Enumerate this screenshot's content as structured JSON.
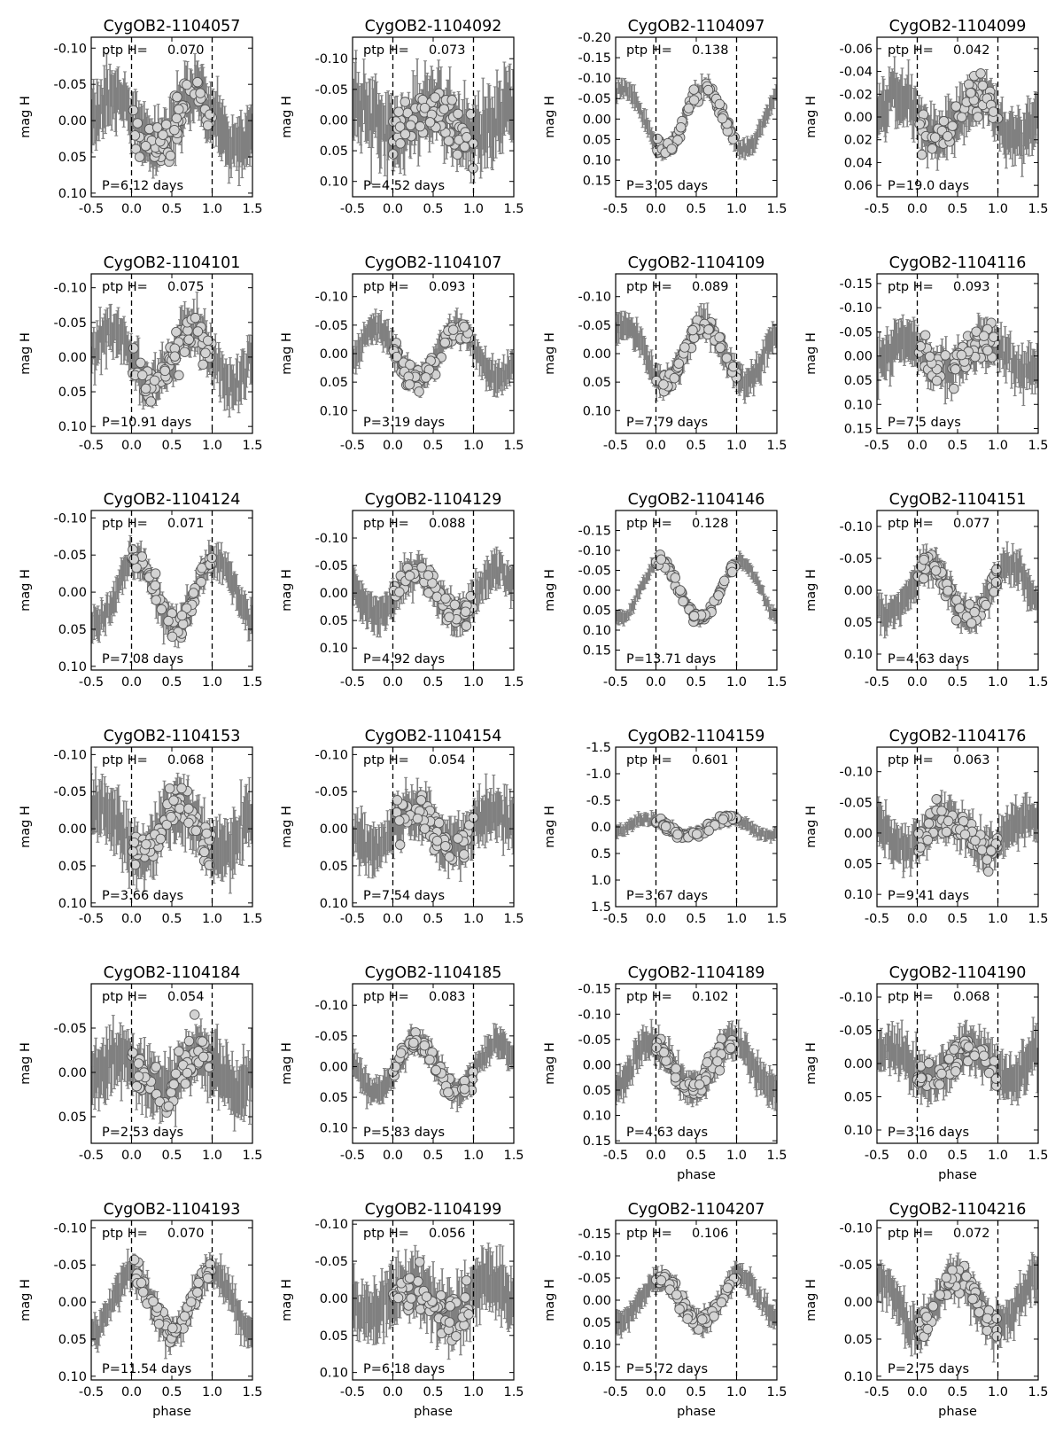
{
  "figure": {
    "ylabel": "mag H",
    "xlabel": "phase",
    "ptp_label": "ptp H=",
    "period_prefix": "P=",
    "period_suffix": " days",
    "colors": {
      "errorbar": "#808080",
      "marker_fill": "#d3d3d3",
      "marker_edge": "#555555",
      "axis": "#000000"
    }
  },
  "chart_data": [
    {
      "type": "scatter",
      "title": "CygOB2-1104057",
      "ptp": "0.070",
      "period": "6.12",
      "ylim": [
        0.105,
        -0.115
      ],
      "yticks": [
        "-0.10",
        "-0.05",
        "0.00",
        "0.05",
        "0.10"
      ],
      "ytick_values": [
        -0.1,
        -0.05,
        0.0,
        0.05,
        0.1
      ],
      "xlim": [
        -0.5,
        1.5
      ],
      "xticks": [
        "-0.5",
        "0.0",
        "0.5",
        "1.0",
        "1.5"
      ],
      "amplitude": 0.035,
      "peak_phase": 0.8,
      "scatter": 0.018,
      "xlabel": ""
    },
    {
      "type": "scatter",
      "title": "CygOB2-1104092",
      "ptp": "0.073",
      "period": "4.52",
      "ylim": [
        0.125,
        -0.135
      ],
      "yticks": [
        "-0.10",
        "-0.05",
        "0.00",
        "0.05",
        "0.10"
      ],
      "ytick_values": [
        -0.1,
        -0.05,
        0.0,
        0.05,
        0.1
      ],
      "xlim": [
        -0.5,
        1.5
      ],
      "xticks": [
        "-0.5",
        "0.0",
        "0.5",
        "1.0",
        "1.5"
      ],
      "amplitude": 0.02,
      "peak_phase": 0.5,
      "scatter": 0.025,
      "xlabel": ""
    },
    {
      "type": "scatter",
      "title": "CygOB2-1104097",
      "ptp": "0.138",
      "period": "3.05",
      "ylim": [
        0.19,
        -0.2
      ],
      "yticks": [
        "-0.20",
        "-0.15",
        "-0.10",
        "-0.05",
        "0.00",
        "0.05",
        "0.10",
        "0.15"
      ],
      "ytick_values": [
        -0.2,
        -0.15,
        -0.1,
        -0.05,
        0.0,
        0.05,
        0.1,
        0.15
      ],
      "xlim": [
        -0.5,
        1.5
      ],
      "xticks": [
        "-0.5",
        "0.0",
        "0.5",
        "1.0",
        "1.5"
      ],
      "amplitude": 0.075,
      "peak_phase": 0.6,
      "scatter": 0.01,
      "xlabel": ""
    },
    {
      "type": "scatter",
      "title": "CygOB2-1104099",
      "ptp": "0.042",
      "period": "19.0",
      "ylim": [
        0.07,
        -0.07
      ],
      "yticks": [
        "-0.06",
        "-0.04",
        "-0.02",
        "0.00",
        "0.02",
        "0.04",
        "0.06"
      ],
      "ytick_values": [
        -0.06,
        -0.04,
        -0.02,
        0.0,
        0.02,
        0.04,
        0.06
      ],
      "xlim": [
        -0.5,
        1.5
      ],
      "xticks": [
        "-0.5",
        "0.0",
        "0.5",
        "1.0",
        "1.5"
      ],
      "amplitude": 0.018,
      "peak_phase": 0.75,
      "scatter": 0.01,
      "xlabel": ""
    },
    {
      "type": "scatter",
      "title": "CygOB2-1104101",
      "ptp": "0.075",
      "period": "10.91",
      "ylim": [
        0.11,
        -0.12
      ],
      "yticks": [
        "-0.10",
        "-0.05",
        "0.00",
        "0.05",
        "0.10"
      ],
      "ytick_values": [
        -0.1,
        -0.05,
        0.0,
        0.05,
        0.1
      ],
      "xlim": [
        -0.5,
        1.5
      ],
      "xticks": [
        "-0.5",
        "0.0",
        "0.5",
        "1.0",
        "1.5"
      ],
      "amplitude": 0.04,
      "peak_phase": 0.75,
      "scatter": 0.015,
      "xlabel": ""
    },
    {
      "type": "scatter",
      "title": "CygOB2-1104107",
      "ptp": "0.093",
      "period": "3.19",
      "ylim": [
        0.14,
        -0.14
      ],
      "yticks": [
        "-0.10",
        "-0.05",
        "0.00",
        "0.05",
        "0.10"
      ],
      "ytick_values": [
        -0.1,
        -0.05,
        0.0,
        0.05,
        0.1
      ],
      "xlim": [
        -0.5,
        1.5
      ],
      "xticks": [
        "-0.5",
        "0.0",
        "0.5",
        "1.0",
        "1.5"
      ],
      "amplitude": 0.045,
      "peak_phase": 0.8,
      "scatter": 0.012,
      "xlabel": ""
    },
    {
      "type": "scatter",
      "title": "CygOB2-1104109",
      "ptp": "0.089",
      "period": "7.79",
      "ylim": [
        0.14,
        -0.14
      ],
      "yticks": [
        "-0.10",
        "-0.05",
        "0.00",
        "0.05",
        "0.10"
      ],
      "ytick_values": [
        -0.1,
        -0.05,
        0.0,
        0.05,
        0.1
      ],
      "xlim": [
        -0.5,
        1.5
      ],
      "xticks": [
        "-0.5",
        "0.0",
        "0.5",
        "1.0",
        "1.5"
      ],
      "amplitude": 0.05,
      "peak_phase": 0.6,
      "scatter": 0.012,
      "xlabel": ""
    },
    {
      "type": "scatter",
      "title": "CygOB2-1104116",
      "ptp": "0.093",
      "period": "7.5",
      "ylim": [
        0.16,
        -0.17
      ],
      "yticks": [
        "-0.15",
        "-0.10",
        "-0.05",
        "0.00",
        "0.05",
        "0.10",
        "0.15"
      ],
      "ytick_values": [
        -0.15,
        -0.1,
        -0.05,
        0.0,
        0.05,
        0.1,
        0.15
      ],
      "xlim": [
        -0.5,
        1.5
      ],
      "xticks": [
        "-0.5",
        "0.0",
        "0.5",
        "1.0",
        "1.5"
      ],
      "amplitude": 0.03,
      "peak_phase": 0.85,
      "scatter": 0.02,
      "xlabel": ""
    },
    {
      "type": "scatter",
      "title": "CygOB2-1104124",
      "ptp": "0.071",
      "period": "7.08",
      "ylim": [
        0.105,
        -0.11
      ],
      "yticks": [
        "-0.10",
        "-0.05",
        "0.00",
        "0.05",
        "0.10"
      ],
      "ytick_values": [
        -0.1,
        -0.05,
        0.0,
        0.05,
        0.1
      ],
      "xlim": [
        -0.5,
        1.5
      ],
      "xticks": [
        "-0.5",
        "0.0",
        "0.5",
        "1.0",
        "1.5"
      ],
      "amplitude": 0.045,
      "peak_phase": 0.05,
      "scatter": 0.01,
      "xlabel": ""
    },
    {
      "type": "scatter",
      "title": "CygOB2-1104129",
      "ptp": "0.088",
      "period": "4.92",
      "ylim": [
        0.14,
        -0.15
      ],
      "yticks": [
        "-0.10",
        "-0.05",
        "0.00",
        "0.05",
        "0.10"
      ],
      "ytick_values": [
        -0.1,
        -0.05,
        0.0,
        0.05,
        0.1
      ],
      "xlim": [
        -0.5,
        1.5
      ],
      "xticks": [
        "-0.5",
        "0.0",
        "0.5",
        "1.0",
        "1.5"
      ],
      "amplitude": 0.04,
      "peak_phase": 0.3,
      "scatter": 0.015,
      "xlabel": ""
    },
    {
      "type": "scatter",
      "title": "CygOB2-1104146",
      "ptp": "0.128",
      "period": "13.71",
      "ylim": [
        0.2,
        -0.2
      ],
      "yticks": [
        "-0.15",
        "-0.10",
        "-0.05",
        "0.00",
        "0.05",
        "0.10",
        "0.15"
      ],
      "ytick_values": [
        -0.15,
        -0.1,
        -0.05,
        0.0,
        0.05,
        0.1,
        0.15
      ],
      "xlim": [
        -0.5,
        1.5
      ],
      "xticks": [
        "-0.5",
        "0.0",
        "0.5",
        "1.0",
        "1.5"
      ],
      "amplitude": 0.07,
      "peak_phase": 0.05,
      "scatter": 0.008,
      "xlabel": ""
    },
    {
      "type": "scatter",
      "title": "CygOB2-1104151",
      "ptp": "0.077",
      "period": "4.63",
      "ylim": [
        0.125,
        -0.125
      ],
      "yticks": [
        "-0.10",
        "-0.05",
        "0.00",
        "0.05",
        "0.10"
      ],
      "ytick_values": [
        -0.1,
        -0.05,
        0.0,
        0.05,
        0.1
      ],
      "xlim": [
        -0.5,
        1.5
      ],
      "xticks": [
        "-0.5",
        "0.0",
        "0.5",
        "1.0",
        "1.5"
      ],
      "amplitude": 0.04,
      "peak_phase": 0.15,
      "scatter": 0.012,
      "xlabel": ""
    },
    {
      "type": "scatter",
      "title": "CygOB2-1104153",
      "ptp": "0.068",
      "period": "3.66",
      "ylim": [
        0.105,
        -0.11
      ],
      "yticks": [
        "-0.10",
        "-0.05",
        "0.00",
        "0.05",
        "0.10"
      ],
      "ytick_values": [
        -0.1,
        -0.05,
        0.0,
        0.05,
        0.1
      ],
      "xlim": [
        -0.5,
        1.5
      ],
      "xticks": [
        "-0.5",
        "0.0",
        "0.5",
        "1.0",
        "1.5"
      ],
      "amplitude": 0.03,
      "peak_phase": 0.6,
      "scatter": 0.018,
      "xlabel": ""
    },
    {
      "type": "scatter",
      "title": "CygOB2-1104154",
      "ptp": "0.054",
      "period": "7.54",
      "ylim": [
        0.105,
        -0.11
      ],
      "yticks": [
        "-0.10",
        "-0.05",
        "0.00",
        "0.05",
        "0.10"
      ],
      "ytick_values": [
        -0.1,
        -0.05,
        0.0,
        0.05,
        0.1
      ],
      "xlim": [
        -0.5,
        1.5
      ],
      "xticks": [
        "-0.5",
        "0.0",
        "0.5",
        "1.0",
        "1.5"
      ],
      "amplitude": 0.025,
      "peak_phase": 0.25,
      "scatter": 0.015,
      "xlabel": ""
    },
    {
      "type": "scatter",
      "title": "CygOB2-1104159",
      "ptp": "0.601",
      "period": "3.67",
      "ylim": [
        1.5,
        -1.5
      ],
      "yticks": [
        "-1.5",
        "-1.0",
        "-0.5",
        "0.0",
        "0.5",
        "1.0",
        "1.5"
      ],
      "ytick_values": [
        -1.5,
        -1.0,
        -0.5,
        0.0,
        0.5,
        1.0,
        1.5
      ],
      "xlim": [
        -0.5,
        1.5
      ],
      "xticks": [
        "-0.5",
        "0.0",
        "0.5",
        "1.0",
        "1.5"
      ],
      "amplitude": 0.15,
      "peak_phase": 0.9,
      "scatter": 0.05,
      "xlabel": ""
    },
    {
      "type": "scatter",
      "title": "CygOB2-1104176",
      "ptp": "0.063",
      "period": "9.41",
      "ylim": [
        0.12,
        -0.14
      ],
      "yticks": [
        "-0.10",
        "-0.05",
        "0.00",
        "0.05",
        "0.10"
      ],
      "ytick_values": [
        -0.1,
        -0.05,
        0.0,
        0.05,
        0.1
      ],
      "xlim": [
        -0.5,
        1.5
      ],
      "xticks": [
        "-0.5",
        "0.0",
        "0.5",
        "1.0",
        "1.5"
      ],
      "amplitude": 0.025,
      "peak_phase": 0.35,
      "scatter": 0.015,
      "xlabel": ""
    },
    {
      "type": "scatter",
      "title": "CygOB2-1104184",
      "ptp": "0.054",
      "period": "2.53",
      "ylim": [
        0.08,
        -0.1
      ],
      "yticks": [
        "-0.05",
        "0.00",
        "0.05"
      ],
      "ytick_values": [
        -0.05,
        0.0,
        0.05
      ],
      "xlim": [
        -0.5,
        1.5
      ],
      "xticks": [
        "-0.5",
        "0.0",
        "0.5",
        "1.0",
        "1.5"
      ],
      "amplitude": 0.02,
      "peak_phase": 0.85,
      "scatter": 0.015,
      "xlabel": ""
    },
    {
      "type": "scatter",
      "title": "CygOB2-1104185",
      "ptp": "0.083",
      "period": "5.83",
      "ylim": [
        0.125,
        -0.135
      ],
      "yticks": [
        "-0.10",
        "-0.05",
        "0.00",
        "0.05",
        "0.10"
      ],
      "ytick_values": [
        -0.1,
        -0.05,
        0.0,
        0.05,
        0.1
      ],
      "xlim": [
        -0.5,
        1.5
      ],
      "xticks": [
        "-0.5",
        "0.0",
        "0.5",
        "1.0",
        "1.5"
      ],
      "amplitude": 0.04,
      "peak_phase": 0.3,
      "scatter": 0.01,
      "xlabel": ""
    },
    {
      "type": "scatter",
      "title": "CygOB2-1104189",
      "ptp": "0.102",
      "period": "4.63",
      "ylim": [
        0.155,
        -0.16
      ],
      "yticks": [
        "-0.15",
        "-0.10",
        "-0.05",
        "0.00",
        "0.05",
        "0.10",
        "0.15"
      ],
      "ytick_values": [
        -0.15,
        -0.1,
        -0.05,
        0.0,
        0.05,
        0.1,
        0.15
      ],
      "xlim": [
        -0.5,
        1.5
      ],
      "xticks": [
        "-0.5",
        "0.0",
        "0.5",
        "1.0",
        "1.5"
      ],
      "amplitude": 0.045,
      "peak_phase": 0.95,
      "scatter": 0.015,
      "xlabel": "phase"
    },
    {
      "type": "scatter",
      "title": "CygOB2-1104190",
      "ptp": "0.068",
      "period": "3.16",
      "ylim": [
        0.12,
        -0.12
      ],
      "yticks": [
        "-0.10",
        "-0.05",
        "0.00",
        "0.05",
        "0.10"
      ],
      "ytick_values": [
        -0.1,
        -0.05,
        0.0,
        0.05,
        0.1
      ],
      "xlim": [
        -0.5,
        1.5
      ],
      "xticks": [
        "-0.5",
        "0.0",
        "0.5",
        "1.0",
        "1.5"
      ],
      "amplitude": 0.025,
      "peak_phase": 0.65,
      "scatter": 0.015,
      "xlabel": "phase"
    },
    {
      "type": "scatter",
      "title": "CygOB2-1104193",
      "ptp": "0.070",
      "period": "11.54",
      "ylim": [
        0.105,
        -0.11
      ],
      "yticks": [
        "-0.10",
        "-0.05",
        "0.00",
        "0.05",
        "0.10"
      ],
      "ytick_values": [
        -0.1,
        -0.05,
        0.0,
        0.05,
        0.1
      ],
      "xlim": [
        -0.5,
        1.5
      ],
      "xticks": [
        "-0.5",
        "0.0",
        "0.5",
        "1.0",
        "1.5"
      ],
      "amplitude": 0.04,
      "peak_phase": 0.0,
      "scatter": 0.01,
      "xlabel": "phase"
    },
    {
      "type": "scatter",
      "title": "CygOB2-1104199",
      "ptp": "0.056",
      "period": "6.18",
      "ylim": [
        0.11,
        -0.105
      ],
      "yticks": [
        "-0.10",
        "-0.05",
        "0.00",
        "0.05",
        "0.10"
      ],
      "ytick_values": [
        -0.1,
        -0.05,
        0.0,
        0.05,
        0.1
      ],
      "xlim": [
        -0.5,
        1.5
      ],
      "xticks": [
        "-0.5",
        "0.0",
        "0.5",
        "1.0",
        "1.5"
      ],
      "amplitude": 0.02,
      "peak_phase": 0.2,
      "scatter": 0.018,
      "xlabel": "phase"
    },
    {
      "type": "scatter",
      "title": "CygOB2-1104207",
      "ptp": "0.106",
      "period": "5.72",
      "ylim": [
        0.18,
        -0.18
      ],
      "yticks": [
        "-0.15",
        "-0.10",
        "-0.05",
        "0.00",
        "0.05",
        "0.10",
        "0.15"
      ],
      "ytick_values": [
        -0.15,
        -0.1,
        -0.05,
        0.0,
        0.05,
        0.1,
        0.15
      ],
      "xlim": [
        -0.5,
        1.5
      ],
      "xticks": [
        "-0.5",
        "0.0",
        "0.5",
        "1.0",
        "1.5"
      ],
      "amplitude": 0.05,
      "peak_phase": 0.05,
      "scatter": 0.012,
      "xlabel": "phase"
    },
    {
      "type": "scatter",
      "title": "CygOB2-1104216",
      "ptp": "0.072",
      "period": "2.75",
      "ylim": [
        0.105,
        -0.11
      ],
      "yticks": [
        "-0.10",
        "-0.05",
        "0.00",
        "0.05",
        "0.10"
      ],
      "ytick_values": [
        -0.1,
        -0.05,
        0.0,
        0.05,
        0.1
      ],
      "xlim": [
        -0.5,
        1.5
      ],
      "xticks": [
        "-0.5",
        "0.0",
        "0.5",
        "1.0",
        "1.5"
      ],
      "amplitude": 0.035,
      "peak_phase": 0.5,
      "scatter": 0.012,
      "xlabel": "phase"
    }
  ]
}
